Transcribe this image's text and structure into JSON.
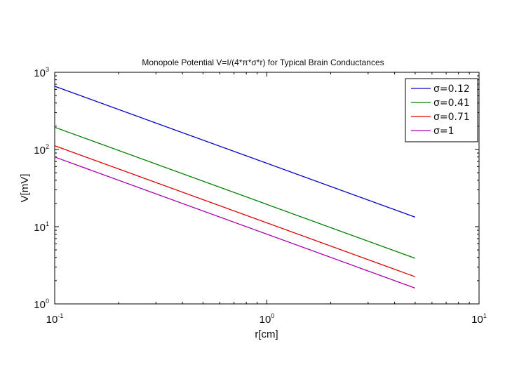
{
  "chart_data": {
    "type": "line",
    "title": "Monopole Potential V=I/(4*π*σ*r) for Typical Brain Conductances",
    "xlabel": "r[cm]",
    "ylabel": "V[mV]",
    "xscale": "log",
    "yscale": "log",
    "xlim": [
      0.1,
      10
    ],
    "ylim": [
      1,
      1000
    ],
    "grid": false,
    "legend_position": "top-right",
    "x_ticks": [
      {
        "value": 0.1,
        "base": "10",
        "exp": "-1"
      },
      {
        "value": 1,
        "base": "10",
        "exp": "0"
      },
      {
        "value": 10,
        "base": "10",
        "exp": "1"
      }
    ],
    "y_ticks": [
      {
        "value": 1,
        "base": "10",
        "exp": "0"
      },
      {
        "value": 10,
        "base": "10",
        "exp": "1"
      },
      {
        "value": 100,
        "base": "10",
        "exp": "2"
      },
      {
        "value": 1000,
        "base": "10",
        "exp": "3"
      }
    ],
    "x": [
      0.1,
      5
    ],
    "series": [
      {
        "name": "σ=0.12",
        "color": "#0000cc",
        "values": [
          660,
          13.3
        ]
      },
      {
        "name": "σ=0.41",
        "color": "#007f00",
        "values": [
          194,
          3.9
        ]
      },
      {
        "name": "σ=0.71",
        "color": "#dd0000",
        "values": [
          112,
          2.25
        ]
      },
      {
        "name": "σ=1",
        "color": "#aa00aa",
        "values": [
          80,
          1.6
        ]
      }
    ]
  }
}
